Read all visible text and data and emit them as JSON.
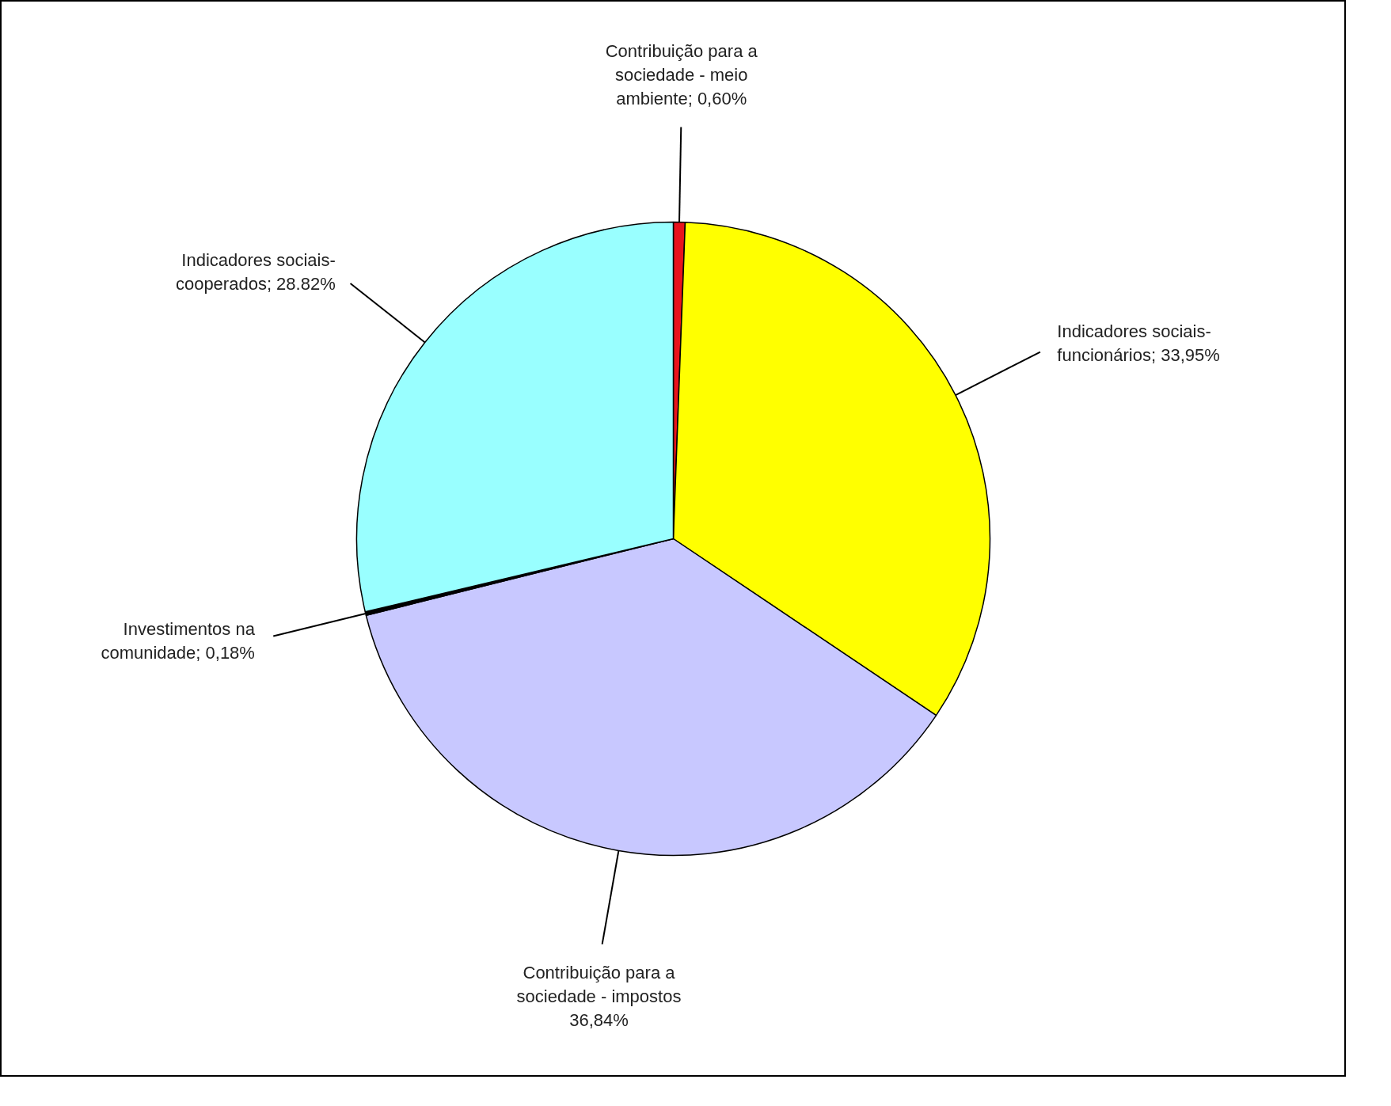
{
  "chart_data": {
    "type": "pie",
    "categories": [
      "Contribuição para a sociedade - meio ambiente",
      "Indicadores sociais-funcionários",
      "Contribuição para a sociedade - impostos",
      "Investimentos na comunidade",
      "Indicadores sociais-cooperados"
    ],
    "values": [
      0.6,
      33.95,
      36.84,
      0.18,
      28.82
    ],
    "colors": [
      "#e8141c",
      "#ffff00",
      "#c8c8ff",
      "#000000",
      "#99ffff"
    ],
    "value_labels": [
      "; 0,60%",
      "; 33,95%",
      " 36,84%",
      "; 0,18%",
      "; 28.82%"
    ]
  }
}
